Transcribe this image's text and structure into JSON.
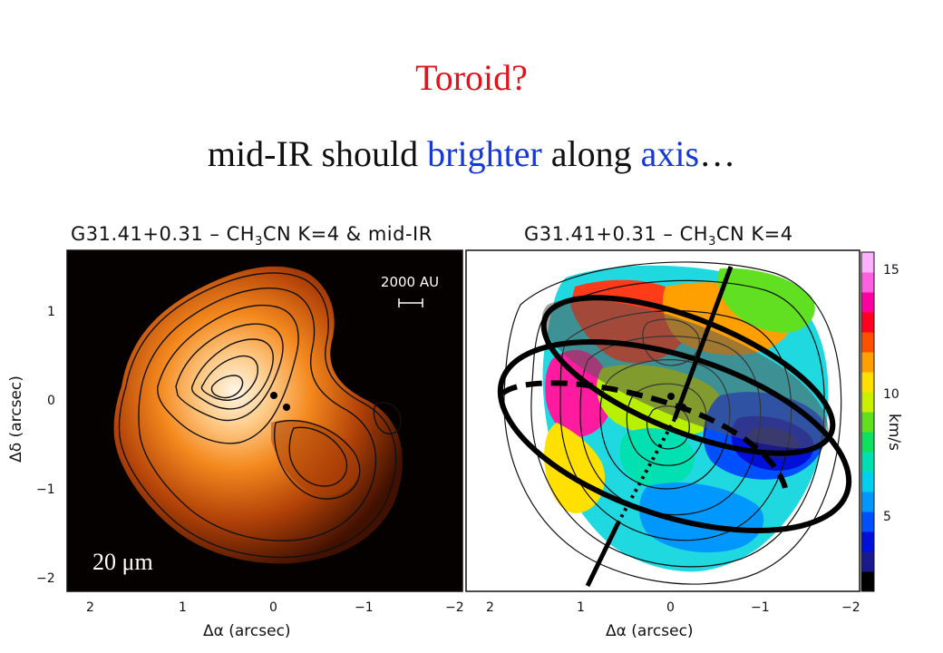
{
  "slide": {
    "title": "Toroid?",
    "subtitle_parts": [
      {
        "text": "mid-IR should ",
        "highlight": false
      },
      {
        "text": "brighter",
        "highlight": true
      },
      {
        "text": " along ",
        "highlight": false
      },
      {
        "text": "axis",
        "highlight": true
      },
      {
        "text": "…",
        "highlight": false
      }
    ],
    "colors": {
      "title": "#e0141a",
      "highlight": "#1638d6",
      "text": "#111111"
    }
  },
  "left_panel": {
    "title_prefix": "G31.41+0.31 – CH",
    "title_sub": "3",
    "title_suffix": "CN K=4 & mid-IR",
    "scale_bar_label": "2000 AU",
    "wavelength_label": "20 μm",
    "x_ticks": [
      "2",
      "1",
      "0",
      "−1",
      "−2"
    ],
    "y_ticks": [
      "1",
      "0",
      "−1",
      "−2"
    ],
    "xlabel": "Δα (arcsec)",
    "ylabel": "Δδ (arcsec)"
  },
  "right_panel": {
    "title_prefix": "G31.41+0.31 – CH",
    "title_sub": "3",
    "title_suffix": "CN K=4",
    "x_ticks": [
      "2",
      "1",
      "0",
      "−1",
      "−2"
    ],
    "xlabel": "Δα (arcsec)",
    "colorbar": {
      "ticks": [
        "15",
        "10",
        "5"
      ],
      "label": "km/s",
      "colors": [
        "#000000",
        "#1a1a8c",
        "#0010d8",
        "#0050ff",
        "#0098ff",
        "#00d0f0",
        "#00e0b0",
        "#10e060",
        "#60e020",
        "#c8f000",
        "#ffe000",
        "#ffa000",
        "#ff5000",
        "#ff0020",
        "#ff00a0",
        "#ff60e0",
        "#ffb0ff"
      ]
    }
  }
}
